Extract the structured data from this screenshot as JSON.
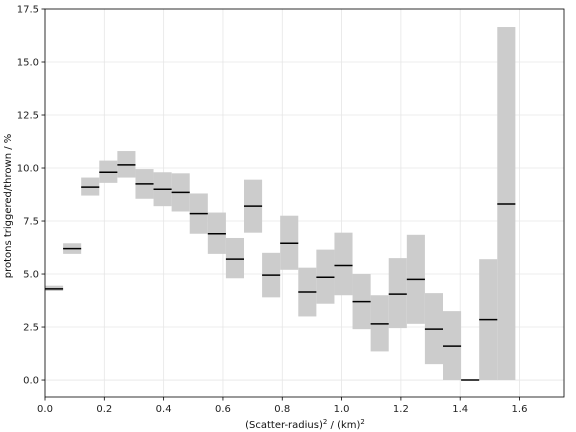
{
  "chart_data": {
    "type": "bar",
    "xlabel": "(Scatter-radius)",
    "xlabel_sup": "2",
    "xlabel_mid": " / (km)",
    "xlabel_sup2": "2",
    "ylabel": "protons triggered/thrown / %",
    "xlim": [
      0.0,
      1.75
    ],
    "ylim": [
      -0.8,
      17.5
    ],
    "xticks": [
      "0.0",
      "0.2",
      "0.4",
      "0.6",
      "0.8",
      "1.0",
      "1.2",
      "1.4",
      "1.6"
    ],
    "yticks": [
      "0.0",
      "2.5",
      "5.0",
      "7.5",
      "10.0",
      "12.5",
      "15.0",
      "17.5"
    ],
    "grid": true,
    "colors": {
      "band": "#cccccc",
      "line": "#000000",
      "grid": "#e6e6e6"
    },
    "bins": [
      {
        "x0": 0.0,
        "x1": 0.061,
        "value": 4.3,
        "low": 4.2,
        "high": 4.45
      },
      {
        "x0": 0.061,
        "x1": 0.122,
        "value": 6.2,
        "low": 5.95,
        "high": 6.45
      },
      {
        "x0": 0.122,
        "x1": 0.183,
        "value": 9.1,
        "low": 8.7,
        "high": 9.55
      },
      {
        "x0": 0.183,
        "x1": 0.244,
        "value": 9.8,
        "low": 9.3,
        "high": 10.35
      },
      {
        "x0": 0.244,
        "x1": 0.305,
        "value": 10.15,
        "low": 9.55,
        "high": 10.8
      },
      {
        "x0": 0.305,
        "x1": 0.366,
        "value": 9.25,
        "low": 8.55,
        "high": 9.95
      },
      {
        "x0": 0.366,
        "x1": 0.427,
        "value": 9.0,
        "low": 8.2,
        "high": 9.8
      },
      {
        "x0": 0.427,
        "x1": 0.488,
        "value": 8.85,
        "low": 7.95,
        "high": 9.75
      },
      {
        "x0": 0.488,
        "x1": 0.549,
        "value": 7.85,
        "low": 6.9,
        "high": 8.8
      },
      {
        "x0": 0.549,
        "x1": 0.61,
        "value": 6.9,
        "low": 5.95,
        "high": 7.9
      },
      {
        "x0": 0.61,
        "x1": 0.671,
        "value": 5.7,
        "low": 4.8,
        "high": 6.7
      },
      {
        "x0": 0.671,
        "x1": 0.732,
        "value": 8.2,
        "low": 6.95,
        "high": 9.45
      },
      {
        "x0": 0.732,
        "x1": 0.793,
        "value": 4.95,
        "low": 3.9,
        "high": 6.0
      },
      {
        "x0": 0.793,
        "x1": 0.854,
        "value": 6.45,
        "low": 5.2,
        "high": 7.75
      },
      {
        "x0": 0.854,
        "x1": 0.915,
        "value": 4.15,
        "low": 3.0,
        "high": 5.3
      },
      {
        "x0": 0.915,
        "x1": 0.976,
        "value": 4.85,
        "low": 3.6,
        "high": 6.15
      },
      {
        "x0": 0.976,
        "x1": 1.037,
        "value": 5.4,
        "low": 4.0,
        "high": 6.95
      },
      {
        "x0": 1.037,
        "x1": 1.098,
        "value": 3.7,
        "low": 2.4,
        "high": 5.0
      },
      {
        "x0": 1.098,
        "x1": 1.159,
        "value": 2.65,
        "low": 1.35,
        "high": 4.0
      },
      {
        "x0": 1.159,
        "x1": 1.22,
        "value": 4.05,
        "low": 2.45,
        "high": 5.75
      },
      {
        "x0": 1.22,
        "x1": 1.281,
        "value": 4.75,
        "low": 2.65,
        "high": 6.85
      },
      {
        "x0": 1.281,
        "x1": 1.342,
        "value": 2.4,
        "low": 0.75,
        "high": 4.1
      },
      {
        "x0": 1.342,
        "x1": 1.403,
        "value": 1.6,
        "low": 0.0,
        "high": 3.25
      },
      {
        "x0": 1.403,
        "x1": 1.464,
        "value": 0.0,
        "low": 0.0,
        "high": 0.0
      },
      {
        "x0": 1.464,
        "x1": 1.525,
        "value": 2.85,
        "low": 0.0,
        "high": 5.7
      },
      {
        "x0": 1.525,
        "x1": 1.586,
        "value": 8.3,
        "low": 0.0,
        "high": 16.65
      }
    ]
  }
}
